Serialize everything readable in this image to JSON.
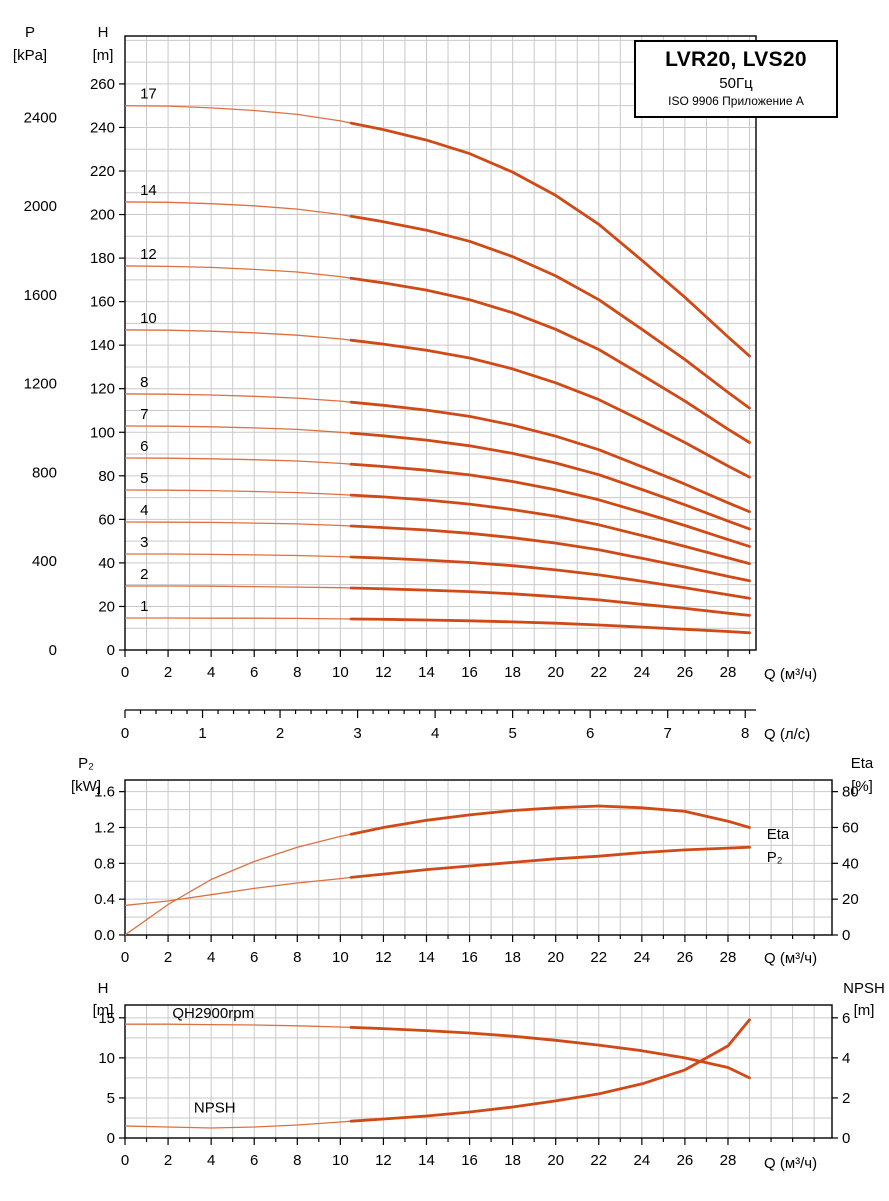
{
  "title_box": {
    "line1": "LVR20, LVS20",
    "line2": "50Гц",
    "line3": "ISO 9906 Приложение A"
  },
  "colors": {
    "curve": "#cf4a17",
    "curve_thin": "#dd7040",
    "grid": "#c9c9c9",
    "axis": "#000000",
    "text": "#000000"
  },
  "chart_data": [
    {
      "id": "qh",
      "type": "line",
      "stage_labels": true,
      "thick_from_q": 10.5,
      "x": {
        "label": "Q (м³/ч)",
        "min": 0,
        "max": 29.3,
        "grid_step": 1,
        "ticks": [
          "0",
          "2",
          "4",
          "6",
          "8",
          "10",
          "12",
          "14",
          "16",
          "18",
          "20",
          "22",
          "24",
          "26",
          "28"
        ],
        "values": [
          0,
          2,
          4,
          6,
          8,
          10,
          12,
          14,
          16,
          18,
          20,
          22,
          24,
          26,
          28,
          29
        ]
      },
      "x2": {
        "label": "Q (л/с)",
        "ticks": [
          "0",
          "1",
          "2",
          "3",
          "4",
          "5",
          "6",
          "7",
          "8"
        ],
        "m3h_per_unit": 3.6,
        "minor_step": 0.2
      },
      "y_left": {
        "name": "H",
        "unit": "[m]",
        "min": 0,
        "max": 282,
        "grid_step": 10,
        "ticks": [
          "0",
          "20",
          "40",
          "60",
          "80",
          "100",
          "120",
          "140",
          "160",
          "180",
          "200",
          "220",
          "240",
          "260"
        ]
      },
      "y_far_left": {
        "name": "P",
        "unit": "[kPa]",
        "left_scale": 0.10194,
        "ticks": [
          "0",
          "400",
          "800",
          "1200",
          "1600",
          "2000",
          "2400"
        ]
      },
      "series": [
        {
          "name": "1",
          "values": [
            14.7,
            14.7,
            14.6,
            14.6,
            14.5,
            14.3,
            14.1,
            13.8,
            13.4,
            12.9,
            12.3,
            11.5,
            10.5,
            9.5,
            8.5,
            7.9
          ]
        },
        {
          "name": "2",
          "values": [
            29.4,
            29.4,
            29.3,
            29.1,
            28.9,
            28.6,
            28.1,
            27.5,
            26.8,
            25.8,
            24.5,
            23.0,
            21.0,
            19.1,
            16.9,
            15.9
          ]
        },
        {
          "name": "3",
          "values": [
            44.1,
            44.1,
            43.9,
            43.7,
            43.4,
            42.9,
            42.2,
            41.3,
            40.2,
            38.7,
            36.8,
            34.5,
            31.6,
            28.6,
            25.4,
            23.8
          ]
        },
        {
          "name": "4",
          "values": [
            58.8,
            58.7,
            58.6,
            58.3,
            57.9,
            57.2,
            56.2,
            55.1,
            53.6,
            51.6,
            49.1,
            46.0,
            42.1,
            38.1,
            33.8,
            31.8
          ]
        },
        {
          "name": "5",
          "values": [
            73.5,
            73.4,
            73.2,
            72.8,
            72.3,
            71.4,
            70.3,
            68.9,
            67.0,
            64.5,
            61.4,
            57.5,
            52.6,
            47.6,
            42.3,
            39.7
          ]
        },
        {
          "name": "6",
          "values": [
            88.2,
            88.1,
            87.8,
            87.4,
            86.8,
            85.7,
            84.3,
            82.6,
            80.4,
            77.4,
            73.6,
            69.0,
            63.2,
            57.2,
            50.7,
            47.6
          ]
        },
        {
          "name": "7",
          "values": [
            102.9,
            102.8,
            102.5,
            102.0,
            101.3,
            100.0,
            98.4,
            96.4,
            93.8,
            90.3,
            85.9,
            80.5,
            73.7,
            66.7,
            59.2,
            55.6
          ]
        },
        {
          "name": "8",
          "values": [
            117.6,
            117.5,
            117.1,
            116.5,
            115.7,
            114.3,
            112.4,
            110.2,
            107.3,
            103.3,
            98.2,
            92.0,
            84.2,
            76.2,
            67.6,
            63.5
          ]
        },
        {
          "name": "10",
          "values": [
            147.0,
            146.9,
            146.4,
            145.7,
            144.6,
            142.9,
            140.5,
            137.7,
            134.1,
            129.1,
            122.7,
            115.0,
            105.3,
            95.3,
            84.5,
            79.4
          ]
        },
        {
          "name": "12",
          "values": [
            176.4,
            176.2,
            175.7,
            174.8,
            173.6,
            171.5,
            168.6,
            165.3,
            160.9,
            154.9,
            147.3,
            138.0,
            126.3,
            114.3,
            101.4,
            95.3
          ]
        },
        {
          "name": "14",
          "values": [
            205.8,
            205.6,
            205.0,
            204.0,
            202.5,
            200.0,
            196.7,
            192.8,
            187.7,
            180.7,
            171.8,
            160.9,
            147.3,
            133.4,
            118.3,
            111.1
          ]
        },
        {
          "name": "17",
          "values": [
            250.0,
            249.8,
            249.0,
            247.8,
            246.0,
            243.0,
            239.0,
            234.2,
            228.0,
            219.5,
            208.8,
            195.5,
            179.0,
            162.0,
            143.8,
            135.0
          ]
        }
      ]
    },
    {
      "id": "power-eff",
      "type": "line",
      "thick_from_q": 10.5,
      "x": {
        "label": "Q (м³/ч)",
        "min": 0,
        "max": 32.83,
        "grid_step": 1,
        "ticks": [
          "0",
          "2",
          "4",
          "6",
          "8",
          "10",
          "12",
          "14",
          "16",
          "18",
          "20",
          "22",
          "24",
          "26",
          "28"
        ],
        "values": [
          0,
          2,
          4,
          6,
          8,
          10,
          12,
          14,
          16,
          18,
          20,
          22,
          24,
          26,
          28,
          29
        ]
      },
      "y_left": {
        "name": "P₂",
        "unit": "[kW]",
        "min": 0,
        "max": 1.73,
        "grid_step": 0.2,
        "ticks": [
          "0.0",
          "0.4",
          "0.8",
          "1.2",
          "1.6"
        ]
      },
      "y_right": {
        "name": "Eta",
        "unit": "[%]",
        "left_scale": 0.02,
        "ticks": [
          "0",
          "20",
          "40",
          "60",
          "80"
        ]
      },
      "series": [
        {
          "name": "Eta",
          "axis": "right",
          "values": [
            0,
            17,
            31,
            41,
            49,
            55,
            60,
            64,
            67,
            69.5,
            71,
            72,
            71,
            69,
            63.5,
            60
          ],
          "label": {
            "text": "Eta",
            "q": 29.8,
            "v": 1.13
          }
        },
        {
          "name": "P2",
          "axis": "left",
          "values": [
            0.33,
            0.38,
            0.45,
            0.52,
            0.58,
            0.63,
            0.68,
            0.73,
            0.77,
            0.81,
            0.85,
            0.88,
            0.92,
            0.95,
            0.97,
            0.98
          ],
          "label": {
            "text": "P₂",
            "q": 29.8,
            "v": 0.87
          }
        }
      ]
    },
    {
      "id": "qh2900-npsh",
      "type": "line",
      "thick_from_q": 10.5,
      "x": {
        "label": "Q (м³/ч)",
        "min": 0,
        "max": 32.83,
        "grid_step": 1,
        "ticks": [
          "0",
          "2",
          "4",
          "6",
          "8",
          "10",
          "12",
          "14",
          "16",
          "18",
          "20",
          "22",
          "24",
          "26",
          "28"
        ],
        "values": [
          0,
          2,
          4,
          6,
          8,
          10,
          12,
          14,
          16,
          18,
          20,
          22,
          24,
          26,
          28,
          29
        ]
      },
      "y_left": {
        "name": "H",
        "unit": "[m]",
        "min": 0,
        "max": 16.6,
        "grid_step": 2.5,
        "ticks": [
          "0",
          "5",
          "10",
          "15"
        ]
      },
      "y_right": {
        "name": "NPSH",
        "unit": "[m]",
        "left_scale": 2.5,
        "ticks": [
          "0",
          "2",
          "4",
          "6"
        ]
      },
      "series": [
        {
          "name": "QH2900rpm",
          "axis": "left",
          "values": [
            14.2,
            14.2,
            14.15,
            14.1,
            14.0,
            13.85,
            13.65,
            13.4,
            13.1,
            12.7,
            12.2,
            11.6,
            10.9,
            10.0,
            8.8,
            7.5
          ],
          "label": {
            "text": "QH2900rpm",
            "q": 2.2,
            "v": 15.6
          }
        },
        {
          "name": "NPSH",
          "axis": "right",
          "values": [
            0.6,
            0.55,
            0.5,
            0.55,
            0.65,
            0.8,
            0.95,
            1.1,
            1.3,
            1.55,
            1.85,
            2.2,
            2.7,
            3.4,
            4.6,
            5.9
          ],
          "label": {
            "text": "NPSH",
            "q": 3.2,
            "v": 3.8
          }
        }
      ]
    }
  ]
}
